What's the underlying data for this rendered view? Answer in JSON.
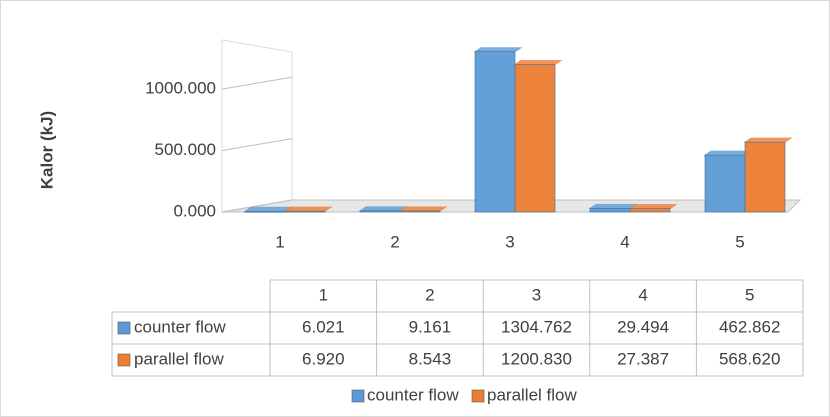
{
  "chart_data": {
    "type": "bar",
    "ylabel": "Kalor (kJ)",
    "categories": [
      "1",
      "2",
      "3",
      "4",
      "5"
    ],
    "series": [
      {
        "name": "counter flow",
        "color": "#5b9bd5",
        "values": [
          6.021,
          9.161,
          1304.762,
          29.494,
          462.862
        ],
        "value_labels": [
          "6.021",
          "9.161",
          "1304.762",
          "29.494",
          "462.862"
        ]
      },
      {
        "name": "parallel flow",
        "color": "#ed7d31",
        "values": [
          6.92,
          8.543,
          1200.83,
          27.387,
          568.62
        ],
        "value_labels": [
          "6.920",
          "8.543",
          "1200.830",
          "27.387",
          "568.620"
        ]
      }
    ],
    "ylim": [
      0,
      1400
    ],
    "yticks": [
      {
        "value": 0,
        "label": "0.000"
      },
      {
        "value": 500,
        "label": "500.000"
      },
      {
        "value": 1000,
        "label": "1000.000"
      }
    ],
    "grid": true,
    "legend": "bottom"
  }
}
